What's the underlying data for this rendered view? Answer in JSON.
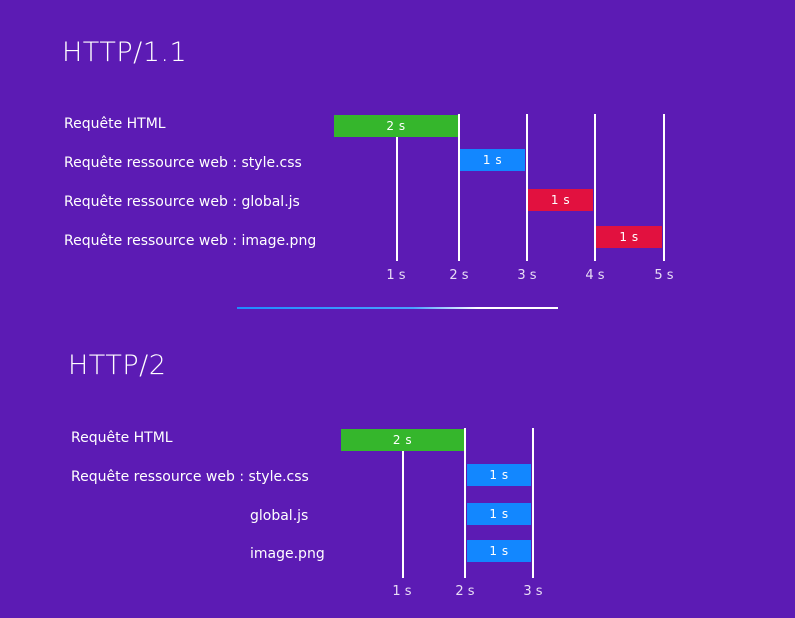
{
  "colors": {
    "background": "#5c1bb4",
    "html_bar": "#35b62c",
    "blue_bar": "#1287ff",
    "red_bar": "#e2113f",
    "line": "#ffffff"
  },
  "http11": {
    "title": "HTTP/1.1",
    "rows": [
      {
        "label": "Requête HTML",
        "bar_text": "2 s",
        "color": "green"
      },
      {
        "label": "Requête ressource web : style.css",
        "bar_text": "1 s",
        "color": "blue"
      },
      {
        "label": "Requête ressource web : global.js",
        "bar_text": "1 s",
        "color": "red"
      },
      {
        "label": "Requête ressource web : image.png",
        "bar_text": "1 s",
        "color": "red"
      }
    ],
    "ticks": [
      "1 s",
      "2 s",
      "3 s",
      "4 s",
      "5 s"
    ]
  },
  "http2": {
    "title": "HTTP/2",
    "rows": [
      {
        "label": "Requête HTML",
        "bar_text": "2 s",
        "color": "green"
      },
      {
        "label": "Requête ressource web : style.css",
        "bar_text": "1 s",
        "color": "blue"
      },
      {
        "label": "global.js",
        "bar_text": "1 s",
        "color": "blue"
      },
      {
        "label": "image.png",
        "bar_text": "1 s",
        "color": "blue"
      }
    ],
    "ticks": [
      "1 s",
      "2 s",
      "3 s"
    ]
  }
}
